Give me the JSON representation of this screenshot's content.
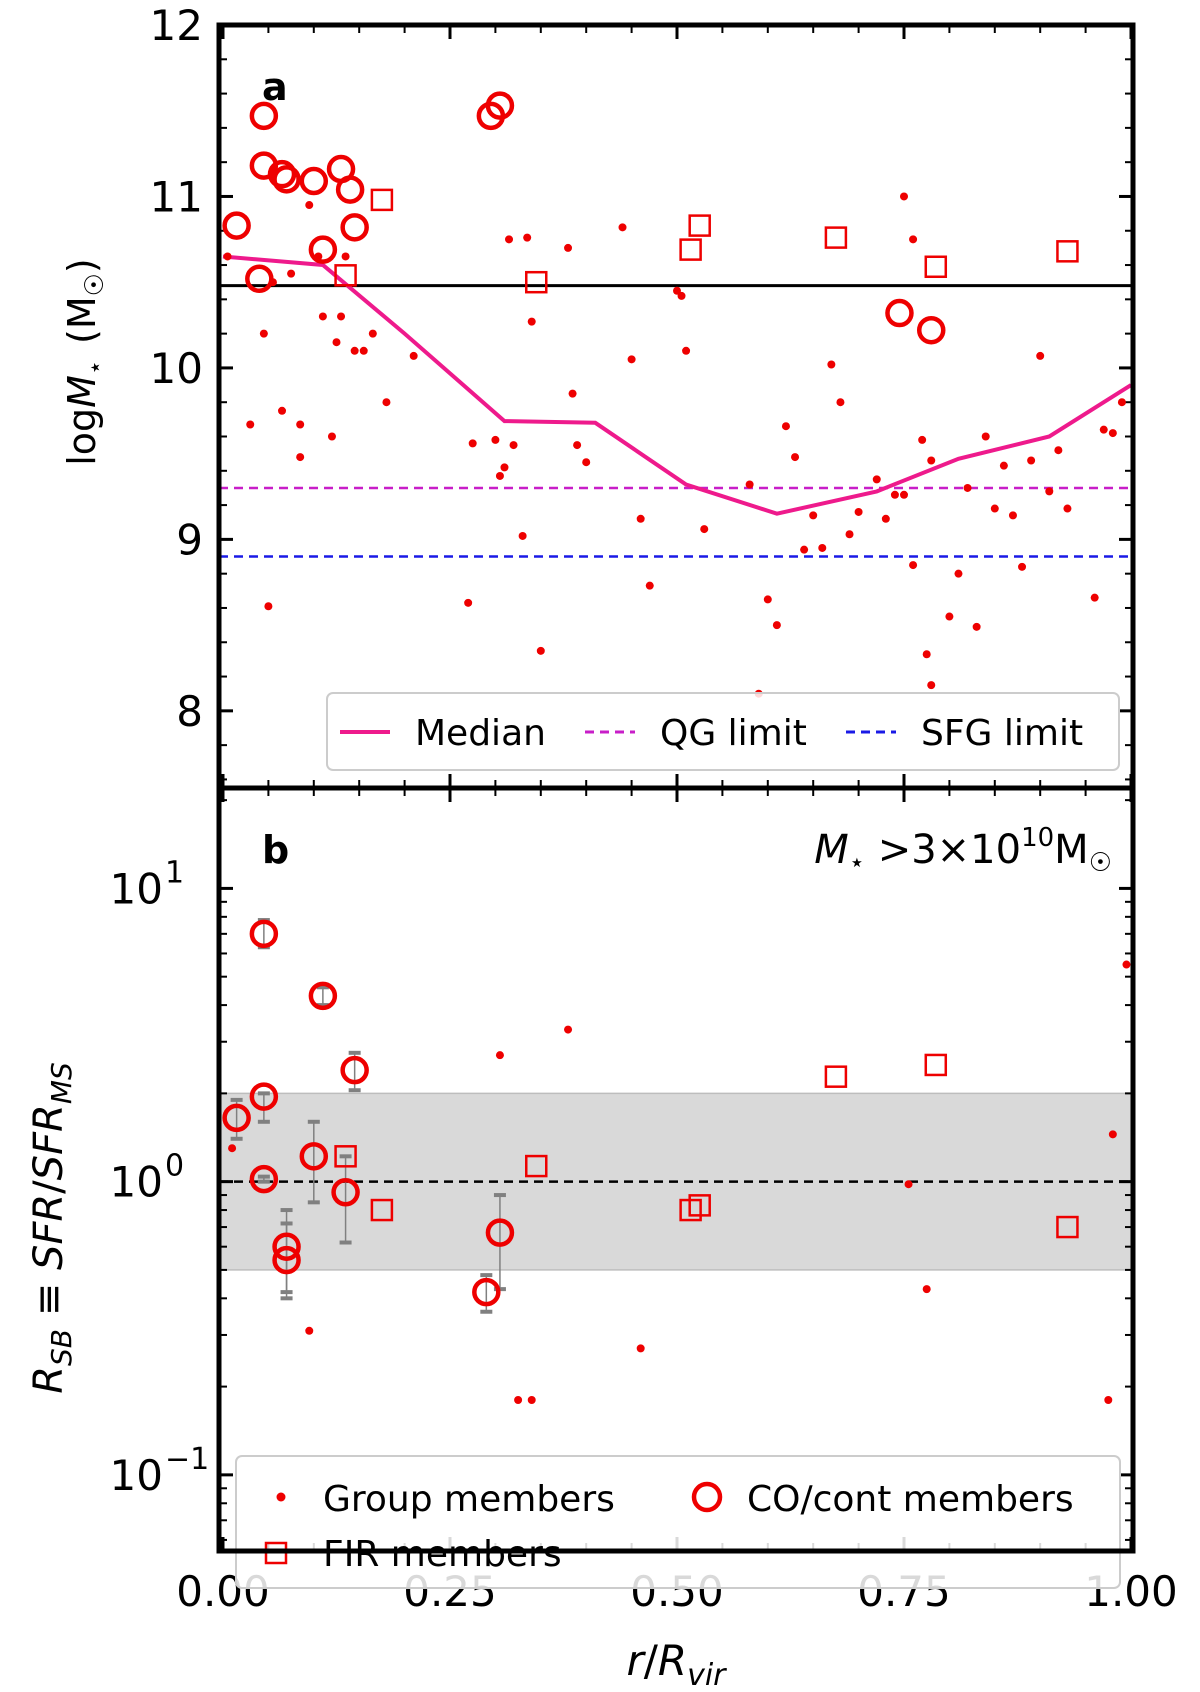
{
  "chart_data": [
    {
      "panel": "a",
      "type": "scatter",
      "panel_label": "a",
      "ylabel": "logM⋆ (M☉)",
      "ylabel_parts": {
        "prefix": "log",
        "symbol": "M",
        "sub": "⋆",
        "unit": "(M",
        "sun": "☉",
        "close": ")"
      },
      "xlim": [
        0.0,
        1.0
      ],
      "ylim": [
        7.55,
        12.0
      ],
      "yticks": [
        8,
        9,
        10,
        11,
        12
      ],
      "ytick_labels": [
        "8",
        "9",
        "10",
        "11",
        "12"
      ],
      "hline": {
        "y": 10.48,
        "color": "#000000",
        "style": "solid"
      },
      "qg_limit": {
        "y": 9.3,
        "color": "#c81ec8",
        "label": "QG limit"
      },
      "sfg_limit": {
        "y": 8.9,
        "color": "#1a1ae6",
        "label": "SFG limit"
      },
      "median": {
        "label": "Median",
        "color": "#ee1a8c",
        "x": [
          0.0,
          0.11,
          0.2,
          0.31,
          0.41,
          0.51,
          0.61,
          0.72,
          0.81,
          0.91,
          1.0
        ],
        "y": [
          10.65,
          10.6,
          10.2,
          9.69,
          9.68,
          9.32,
          9.15,
          9.28,
          9.47,
          9.6,
          9.9
        ]
      },
      "legend": {
        "position": "lower-right",
        "entries": [
          "Median",
          "QG limit",
          "SFG limit"
        ]
      },
      "group_members": {
        "label": "Group members",
        "color": "#ee0000",
        "x": [
          0.005,
          0.045,
          0.055,
          0.065,
          0.075,
          0.085,
          0.095,
          0.105,
          0.11,
          0.12,
          0.125,
          0.13,
          0.135,
          0.145,
          0.155,
          0.165,
          0.18,
          0.21,
          0.27,
          0.275,
          0.3,
          0.305,
          0.31,
          0.315,
          0.32,
          0.33,
          0.335,
          0.34,
          0.38,
          0.385,
          0.39,
          0.4,
          0.44,
          0.45,
          0.46,
          0.47,
          0.5,
          0.505,
          0.51,
          0.53,
          0.58,
          0.59,
          0.6,
          0.61,
          0.62,
          0.63,
          0.64,
          0.65,
          0.66,
          0.67,
          0.68,
          0.69,
          0.7,
          0.72,
          0.73,
          0.74,
          0.75,
          0.76,
          0.77,
          0.78,
          0.8,
          0.81,
          0.82,
          0.83,
          0.84,
          0.85,
          0.86,
          0.87,
          0.88,
          0.89,
          0.9,
          0.91,
          0.92,
          0.93,
          0.96,
          0.97,
          0.98,
          0.99,
          0.75,
          0.76,
          0.78,
          0.775,
          0.35,
          0.05,
          0.085,
          0.03
        ],
        "y": [
          10.65,
          10.2,
          10.5,
          9.75,
          10.55,
          9.48,
          10.95,
          10.65,
          10.3,
          9.6,
          10.15,
          10.3,
          10.65,
          10.1,
          10.1,
          10.2,
          9.8,
          10.07,
          8.63,
          9.56,
          9.58,
          9.37,
          9.42,
          10.75,
          9.55,
          9.02,
          10.76,
          10.27,
          10.7,
          9.85,
          9.55,
          9.45,
          10.82,
          10.05,
          9.12,
          8.73,
          10.45,
          10.42,
          10.1,
          9.06,
          9.32,
          8.1,
          8.65,
          8.5,
          9.66,
          9.48,
          8.94,
          9.14,
          8.95,
          10.02,
          9.8,
          9.03,
          9.16,
          9.35,
          9.12,
          9.26,
          9.26,
          8.85,
          9.58,
          9.46,
          8.55,
          8.8,
          9.3,
          8.49,
          9.6,
          9.18,
          9.43,
          9.14,
          8.84,
          9.46,
          10.07,
          9.28,
          9.52,
          9.18,
          8.66,
          9.64,
          9.62,
          9.8,
          11.0,
          10.75,
          8.15,
          8.33,
          8.35,
          8.61,
          9.67,
          9.67
        ],
        "note": "approximate positions read from scatter"
      },
      "co_cont_members": {
        "label": "CO/cont members",
        "color": "#ee0000",
        "x": [
          0.015,
          0.04,
          0.045,
          0.045,
          0.065,
          0.07,
          0.1,
          0.11,
          0.13,
          0.14,
          0.145,
          0.295,
          0.305,
          0.745,
          0.78
        ],
        "y": [
          10.83,
          10.52,
          11.47,
          11.18,
          11.13,
          11.1,
          11.09,
          10.69,
          11.16,
          11.04,
          10.82,
          11.47,
          11.53,
          10.32,
          10.22
        ]
      },
      "fir_members": {
        "label": "FIR members",
        "color": "#ee0000",
        "x": [
          0.135,
          0.175,
          0.345,
          0.515,
          0.525,
          0.675,
          0.785,
          0.93
        ],
        "y": [
          10.54,
          10.98,
          10.5,
          10.69,
          10.83,
          10.76,
          10.59,
          10.68
        ]
      }
    },
    {
      "panel": "b",
      "type": "scatter",
      "panel_label": "b",
      "annotation": {
        "symbol": "M",
        "sub": "⋆",
        "rest": " >3×10",
        "exp": "10",
        "unit": "M",
        "sun": "☉"
      },
      "ylabel": "R_SB ≡ SFR/SFR_MS",
      "ylabel_parts": {
        "r": "R",
        "r_sub": "SB",
        "eq": " ≡ ",
        "sfr": "SFR",
        "slash": "/",
        "sfr2": "SFR",
        "ms": "MS"
      },
      "xlabel": "r/R_vir",
      "xlabel_parts": {
        "r": "r",
        "slash": "/",
        "R": "R",
        "vir": "vir"
      },
      "xlim": [
        0.0,
        1.0
      ],
      "xticks": [
        0.0,
        0.25,
        0.5,
        0.75,
        1.0
      ],
      "xtick_labels": [
        "0.00",
        "0.25",
        "0.50",
        "0.75",
        "1.00"
      ],
      "yscale": "log",
      "ylim": [
        0.055,
        22
      ],
      "yticks": [
        0.1,
        1,
        10
      ],
      "ytick_labels": [
        {
          "base": "10",
          "exp": "−1"
        },
        {
          "base": "10",
          "exp": "0"
        },
        {
          "base": "10",
          "exp": "1"
        }
      ],
      "band": {
        "y0": 0.5,
        "y1": 2.0,
        "color": "#d9d9d9"
      },
      "hline": {
        "y": 1.0,
        "color": "#000000",
        "style": "dashed"
      },
      "legend": {
        "position": "bottom",
        "entries": [
          "Group members",
          "CO/cont members",
          "FIR members"
        ]
      },
      "group_members": {
        "label": "Group members",
        "color": "#ee0000",
        "x": [
          0.01,
          0.095,
          0.305,
          0.325,
          0.34,
          0.38,
          0.46,
          0.755,
          0.775,
          0.975,
          0.98,
          0.995
        ],
        "y": [
          1.3,
          0.31,
          2.7,
          0.18,
          0.18,
          3.3,
          0.27,
          0.98,
          0.43,
          0.18,
          1.45,
          5.5
        ]
      },
      "co_cont_members": {
        "label": "CO/cont members",
        "color": "#ee0000",
        "x": [
          0.015,
          0.045,
          0.045,
          0.045,
          0.07,
          0.07,
          0.1,
          0.11,
          0.135,
          0.145,
          0.29,
          0.305
        ],
        "y": [
          1.65,
          7.0,
          1.95,
          1.02,
          0.6,
          0.54,
          1.22,
          4.3,
          0.92,
          2.4,
          0.42,
          0.67
        ],
        "err_lo": [
          1.4,
          6.3,
          1.6,
          1.0,
          0.42,
          0.4,
          0.85,
          4.0,
          0.62,
          2.05,
          0.36,
          0.43
        ],
        "err_hi": [
          1.9,
          7.8,
          2.0,
          1.04,
          0.8,
          0.72,
          1.6,
          4.6,
          1.22,
          2.75,
          0.48,
          0.9
        ]
      },
      "fir_members": {
        "label": "FIR members",
        "color": "#ee0000",
        "x": [
          0.135,
          0.175,
          0.345,
          0.515,
          0.525,
          0.675,
          0.785,
          0.93
        ],
        "y": [
          1.22,
          0.8,
          1.13,
          0.8,
          0.83,
          2.28,
          2.5,
          0.7
        ]
      }
    }
  ]
}
